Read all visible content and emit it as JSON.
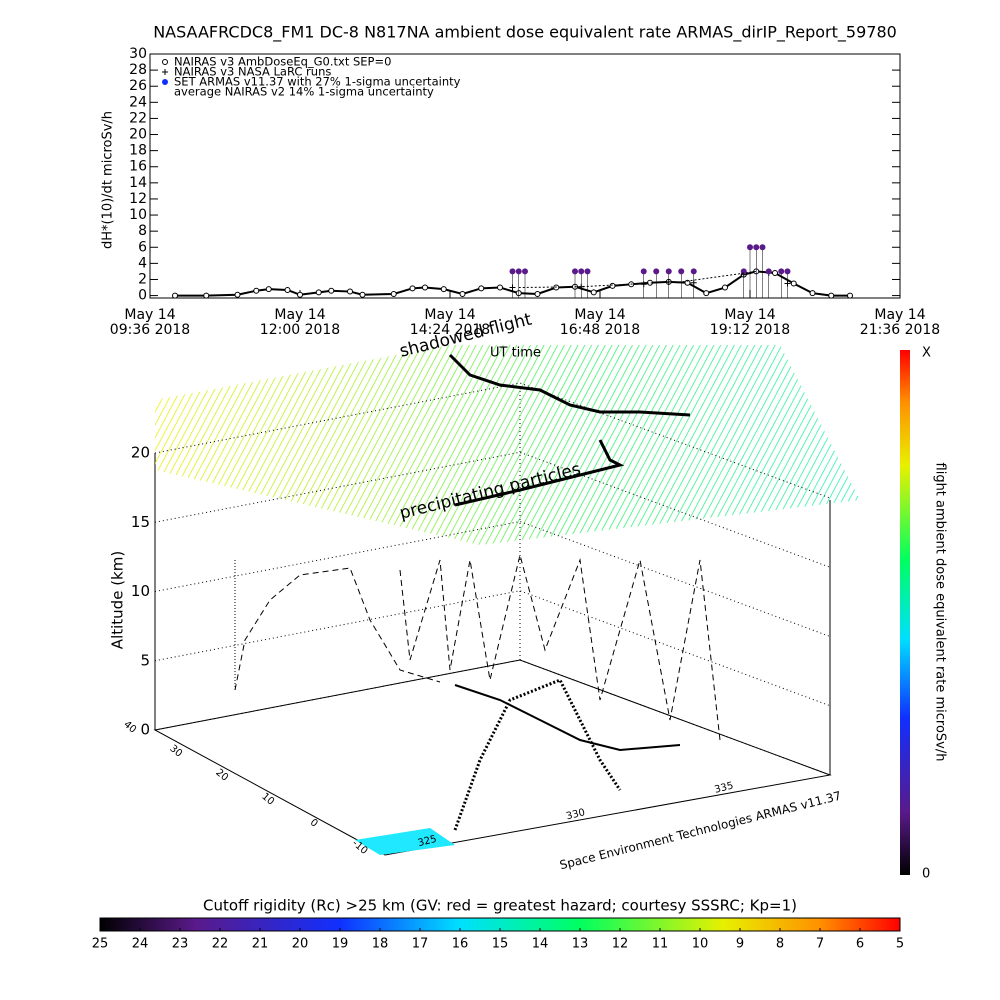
{
  "title": "NASAAFRCDC8_FM1 DC-8   N817NA ambient dose equivalent rate ARMAS_dirIP_Report_59780",
  "chart_data": [
    {
      "type": "line",
      "ylabel": "dH*(10)/dt microSv/h",
      "xlim": [
        9.6,
        21.6
      ],
      "ylim": [
        -0.3,
        30
      ],
      "yticks": [
        0,
        2,
        4,
        6,
        8,
        10,
        12,
        14,
        16,
        18,
        20,
        22,
        24,
        26,
        28,
        30
      ],
      "xticks": [
        {
          "value": 9.6,
          "label": [
            "May 14",
            "09:36 2018"
          ]
        },
        {
          "value": 12,
          "label": [
            "May 14",
            "12:00 2018"
          ]
        },
        {
          "value": 14.4,
          "label": [
            "May 14",
            "14:24 2018"
          ]
        },
        {
          "value": 16.8,
          "label": [
            "May 14",
            "16:48 2018"
          ]
        },
        {
          "value": 19.2,
          "label": [
            "May 14",
            "19:12 2018"
          ]
        },
        {
          "value": 21.6,
          "label": [
            "May 14",
            "21:36 2018"
          ]
        }
      ],
      "series": [
        {
          "name": "NAIRAS v3 AmbDoseEq_G0.txt SEP=0",
          "color": "#000000",
          "marker": "circle",
          "x": [
            10.0,
            10.5,
            11.0,
            11.3,
            11.5,
            11.8,
            12.0,
            12.3,
            12.5,
            12.8,
            13.0,
            13.5,
            13.8,
            14.0,
            14.3,
            14.6,
            14.9,
            15.2,
            15.5,
            15.8,
            16.1,
            16.4,
            16.7,
            17.0,
            17.3,
            17.6,
            17.9,
            18.2,
            18.5,
            18.8,
            19.1,
            19.3,
            19.6,
            19.9,
            20.2,
            20.5,
            20.8
          ],
          "values": [
            0,
            0,
            0.1,
            0.6,
            0.8,
            0.7,
            0.1,
            0.4,
            0.6,
            0.5,
            0.1,
            0.2,
            0.9,
            1.0,
            0.8,
            0.2,
            0.9,
            1.0,
            0.3,
            0.2,
            1.0,
            1.1,
            0.4,
            1.2,
            1.4,
            1.6,
            1.7,
            1.6,
            0.3,
            1.0,
            2.6,
            3.0,
            2.8,
            1.5,
            0.3,
            0,
            0
          ]
        },
        {
          "name": "NAIRAS v3 NASA LaRC runs",
          "color": "#000000",
          "marker": "plus",
          "x": [
            15.4,
            16.5,
            17.5,
            17.9,
            18.3,
            19.1,
            19.5,
            19.8
          ],
          "values": [
            1.0,
            1.1,
            1.4,
            1.7,
            1.6,
            2.6,
            2.8,
            1.5
          ]
        },
        {
          "name": "SET ARMAS v11.37 with 27% 1-sigma uncertainty",
          "color": "#5a1a8a",
          "marker": "dot",
          "x": [
            15.4,
            15.5,
            15.6,
            16.4,
            16.5,
            16.6,
            17.5,
            17.7,
            17.9,
            18.1,
            18.3,
            19.1,
            19.2,
            19.3,
            19.4,
            19.5,
            19.7,
            19.8
          ],
          "values": [
            3,
            3,
            3,
            3,
            3,
            3,
            3,
            3,
            3,
            3,
            3,
            3,
            6,
            6,
            6,
            3,
            3,
            3
          ]
        },
        {
          "name": "average NAIRAS v2 14% 1-sigma uncertainty",
          "color": "#000000",
          "marker": "none",
          "x": [
            15.5,
            16.5,
            17.7,
            18.1,
            19.3
          ],
          "values": [
            1.0,
            1.1,
            1.6,
            1.7,
            3.0
          ]
        }
      ]
    },
    {
      "type": "scatter3d",
      "zlabel": "Altitude (km)",
      "zlim": [
        0,
        20
      ],
      "zticks": [
        0,
        5,
        10,
        15,
        20
      ],
      "latticks": [
        -10,
        0,
        10,
        20,
        30,
        40
      ],
      "lonticks": [
        325,
        330,
        335
      ],
      "annotations": [
        "shadowed flight",
        "UT time",
        "precipitating particles"
      ],
      "credit": "Space Environment Technologies ARMAS v11.37"
    },
    {
      "type": "colorbar",
      "label": "flight ambient dose equivalent rate microSv/h",
      "top": "X",
      "bottom": "0"
    },
    {
      "type": "colorbar",
      "label": "Cutoff rigidity (Rc) >25 km (GV: red = greatest hazard; courtesy SSSRC; Kp=1)",
      "lim": [
        25,
        5
      ],
      "ticks": [
        25,
        24,
        23,
        22,
        21,
        20,
        19,
        18,
        17,
        16,
        15,
        14,
        13,
        12,
        11,
        10,
        9,
        8,
        7,
        6,
        5
      ]
    }
  ]
}
